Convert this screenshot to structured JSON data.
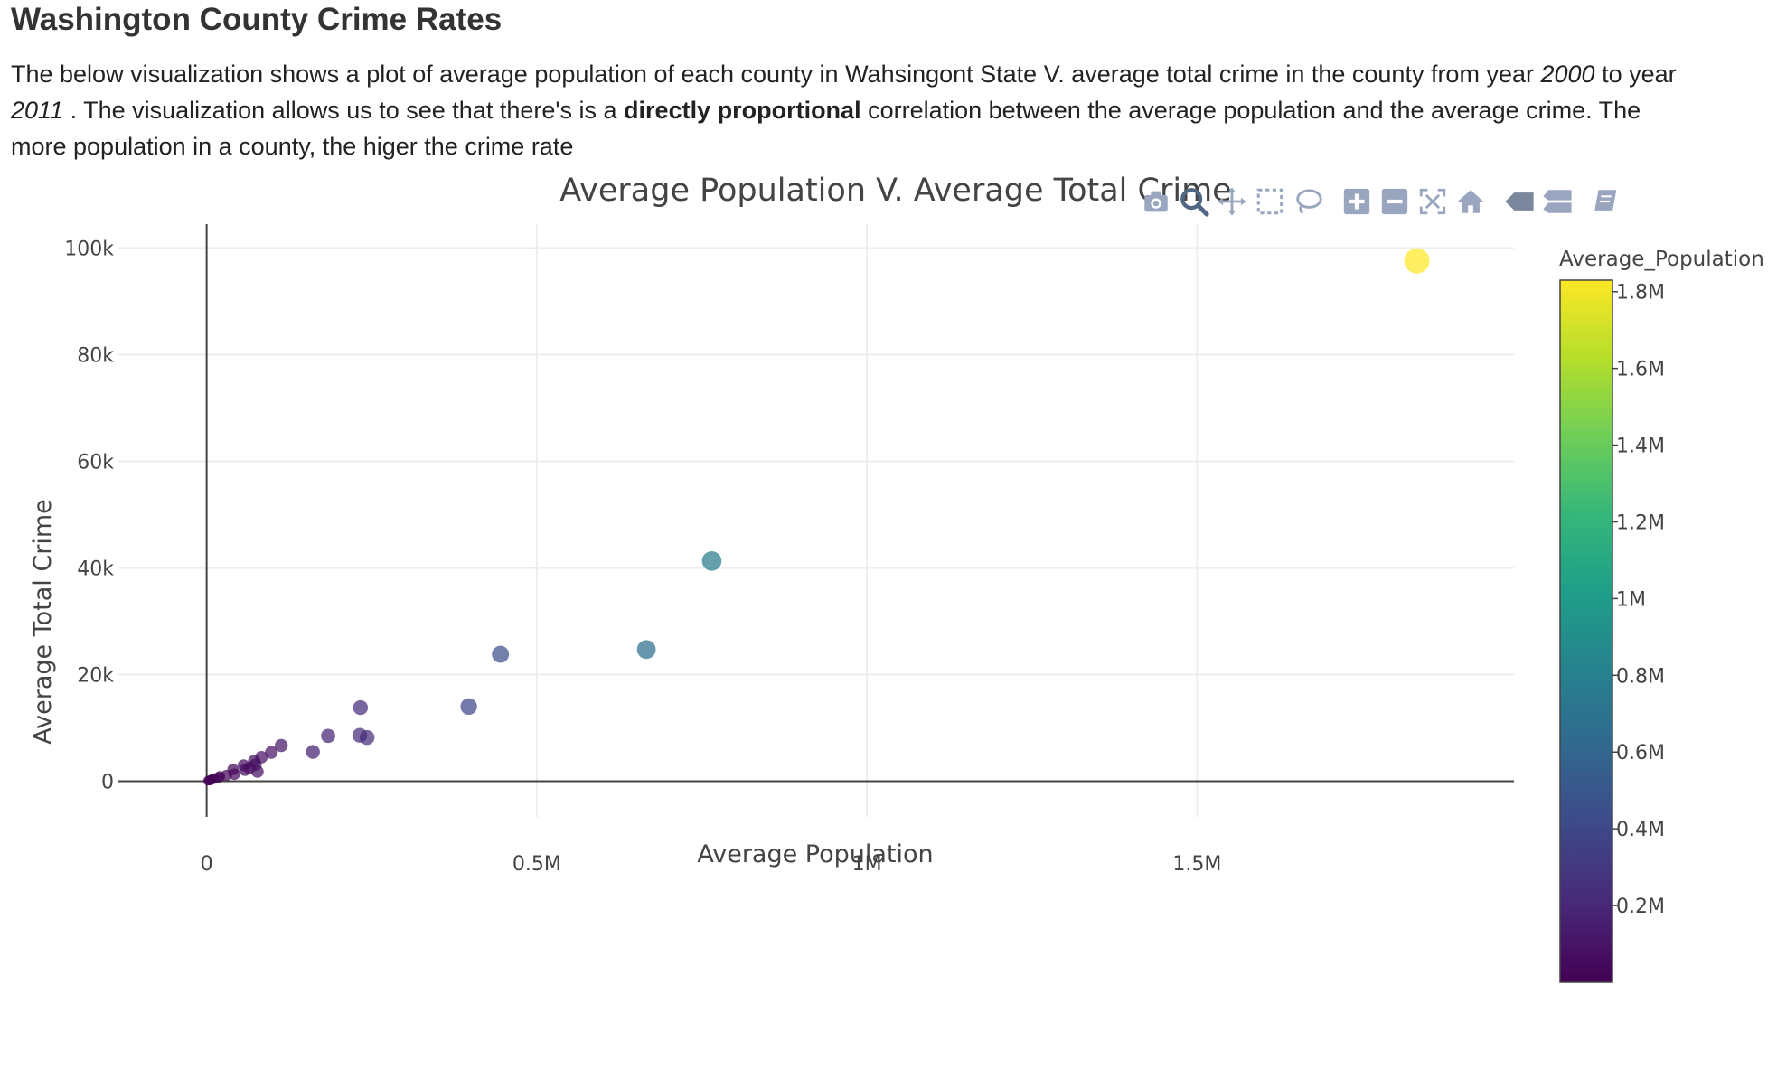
{
  "header": {
    "title": "Washington County Crime Rates"
  },
  "description": {
    "part1": "The below visualization shows a plot of average population of each county in Wahsingont State V. average total crime in the county from year ",
    "year_start": "2000",
    "part2": " to year ",
    "year_end": "2011",
    "part3": " . The visualization allows us to see that there's is a ",
    "emphasis": "directly proportional",
    "part4": " correlation between the average population and the average crime. The more population in a county, the higer the crime rate"
  },
  "modebar": {
    "buttons": [
      "camera-icon",
      "zoom-icon",
      "pan-icon",
      "box-select-icon",
      "lasso-icon",
      "zoom-in-icon",
      "zoom-out-icon",
      "autoscale-icon",
      "reset-axes-icon",
      "spike-lines-icon",
      "compare-hover-icon",
      "closest-hover-icon"
    ]
  },
  "chart_data": {
    "type": "scatter",
    "title": "Average Population V. Average Total Crime",
    "xlabel": "Average Population",
    "ylabel": "Average Total Crime",
    "xlim": [
      -135000,
      1980000
    ],
    "ylim": [
      -6700,
      104500
    ],
    "xticks": [
      0,
      500000,
      1000000,
      1500000
    ],
    "xtick_labels": [
      "0",
      "0.5M",
      "1M",
      "1.5M"
    ],
    "yticks": [
      0,
      20000,
      40000,
      60000,
      80000,
      100000
    ],
    "ytick_labels": [
      "0",
      "20k",
      "40k",
      "60k",
      "80k",
      "100k"
    ],
    "grid": true,
    "colorbar": {
      "title": "Average_Population",
      "range": [
        0,
        1830000
      ],
      "ticks": [
        200000,
        400000,
        600000,
        800000,
        1000000,
        1200000,
        1400000,
        1600000,
        1800000
      ],
      "tick_labels": [
        "0.2M",
        "0.4M",
        "0.6M",
        "0.8M",
        "1M",
        "1.2M",
        "1.4M",
        "1.6M",
        "1.8M"
      ],
      "colorscale": [
        "#440154",
        "#482878",
        "#3e4989",
        "#31688e",
        "#26828e",
        "#1f9e89",
        "#35b779",
        "#6ece58",
        "#b5de2b",
        "#fde725"
      ]
    },
    "points": [
      {
        "x": 1833000,
        "y": 97600
      },
      {
        "x": 765000,
        "y": 41300
      },
      {
        "x": 666000,
        "y": 24700
      },
      {
        "x": 445000,
        "y": 23800
      },
      {
        "x": 397000,
        "y": 14000
      },
      {
        "x": 233000,
        "y": 13800
      },
      {
        "x": 232000,
        "y": 8600
      },
      {
        "x": 243000,
        "y": 8200
      },
      {
        "x": 184000,
        "y": 8500
      },
      {
        "x": 161000,
        "y": 5500
      },
      {
        "x": 113000,
        "y": 6700
      },
      {
        "x": 98000,
        "y": 5400
      },
      {
        "x": 83000,
        "y": 4500
      },
      {
        "x": 72000,
        "y": 3800
      },
      {
        "x": 74000,
        "y": 3100
      },
      {
        "x": 56000,
        "y": 3000
      },
      {
        "x": 65000,
        "y": 2500
      },
      {
        "x": 58000,
        "y": 2100
      },
      {
        "x": 77000,
        "y": 1800
      },
      {
        "x": 40000,
        "y": 2200
      },
      {
        "x": 42000,
        "y": 1300
      },
      {
        "x": 30000,
        "y": 1100
      },
      {
        "x": 20000,
        "y": 900
      },
      {
        "x": 18000,
        "y": 700
      },
      {
        "x": 12000,
        "y": 500
      },
      {
        "x": 8000,
        "y": 350
      },
      {
        "x": 6000,
        "y": 200
      },
      {
        "x": 4000,
        "y": 150
      },
      {
        "x": 2000,
        "y": 80
      }
    ]
  }
}
